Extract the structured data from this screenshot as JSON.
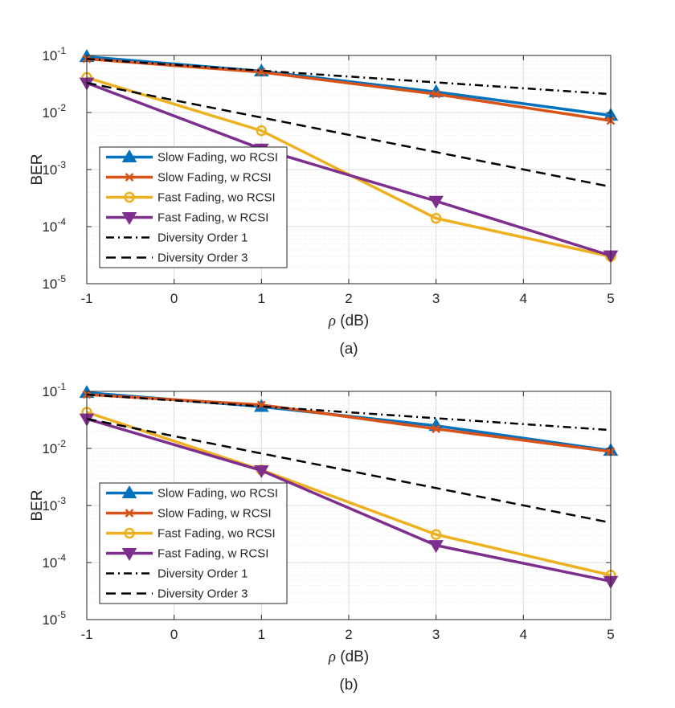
{
  "chart_data": [
    {
      "type": "line",
      "caption": "(a)",
      "xlabel_symbol": "ρ",
      "xlabel_unit": " (dB)",
      "ylabel": "BER",
      "y_scale": "log",
      "xlim": [
        -1,
        5
      ],
      "ylim": [
        1e-05,
        0.1
      ],
      "xticks": [
        "-1",
        "0",
        "1",
        "2",
        "3",
        "4",
        "5"
      ],
      "yticks": [
        {
          "base": "10",
          "exp": "-5"
        },
        {
          "base": "10",
          "exp": "-4"
        },
        {
          "base": "10",
          "exp": "-3"
        },
        {
          "base": "10",
          "exp": "-2"
        },
        {
          "base": "10",
          "exp": "-1"
        }
      ],
      "grid": true,
      "legend_position": "lower-left",
      "series": [
        {
          "name": "Slow Fading, wo RCSI",
          "color": "#0072BD",
          "marker": "triangle-up",
          "line": "solid",
          "x": [
            -1,
            1,
            3,
            5
          ],
          "y": [
            0.095,
            0.053,
            0.023,
            0.0089
          ]
        },
        {
          "name": "Slow Fading, w RCSI",
          "color": "#D95319",
          "marker": "x",
          "line": "solid",
          "x": [
            -1,
            1,
            3,
            5
          ],
          "y": [
            0.087,
            0.051,
            0.021,
            0.0072
          ]
        },
        {
          "name": "Fast Fading, wo RCSI",
          "color": "#EDB120",
          "marker": "circle",
          "line": "solid",
          "x": [
            -1,
            1,
            3,
            5
          ],
          "y": [
            0.041,
            0.0048,
            0.00014,
            3e-05
          ]
        },
        {
          "name": "Fast Fading, w RCSI",
          "color": "#7E2F8E",
          "marker": "triangle-down",
          "line": "solid",
          "x": [
            -1,
            1,
            3,
            5
          ],
          "y": [
            0.033,
            0.0023,
            0.00028,
            3.1e-05
          ]
        },
        {
          "name": "Diversity Order 1",
          "color": "#000000",
          "marker": "none",
          "line": "dashdot",
          "x": [
            -1,
            5
          ],
          "y": [
            0.087,
            0.021
          ]
        },
        {
          "name": "Diversity Order 3",
          "color": "#000000",
          "marker": "none",
          "line": "dashed",
          "x": [
            -1,
            5
          ],
          "y": [
            0.033,
            0.0005
          ]
        }
      ]
    },
    {
      "type": "line",
      "caption": "(b)",
      "xlabel_symbol": "ρ",
      "xlabel_unit": " (dB)",
      "ylabel": "BER",
      "y_scale": "log",
      "xlim": [
        -1,
        5
      ],
      "ylim": [
        1e-05,
        0.1
      ],
      "xticks": [
        "-1",
        "0",
        "1",
        "2",
        "3",
        "4",
        "5"
      ],
      "yticks": [
        {
          "base": "10",
          "exp": "-5"
        },
        {
          "base": "10",
          "exp": "-4"
        },
        {
          "base": "10",
          "exp": "-3"
        },
        {
          "base": "10",
          "exp": "-2"
        },
        {
          "base": "10",
          "exp": "-1"
        }
      ],
      "grid": true,
      "legend_position": "lower-left",
      "series": [
        {
          "name": "Slow Fading, wo RCSI",
          "color": "#0072BD",
          "marker": "triangle-up",
          "line": "solid",
          "x": [
            -1,
            1,
            3,
            5
          ],
          "y": [
            0.095,
            0.054,
            0.025,
            0.0092
          ]
        },
        {
          "name": "Slow Fading, w RCSI",
          "color": "#D95319",
          "marker": "x",
          "line": "solid",
          "x": [
            -1,
            1,
            3,
            5
          ],
          "y": [
            0.088,
            0.058,
            0.022,
            0.0088
          ]
        },
        {
          "name": "Fast Fading, wo RCSI",
          "color": "#EDB120",
          "marker": "circle",
          "line": "solid",
          "x": [
            -1,
            1,
            3,
            5
          ],
          "y": [
            0.043,
            0.0042,
            0.00031,
            6e-05
          ]
        },
        {
          "name": "Fast Fading, w RCSI",
          "color": "#7E2F8E",
          "marker": "triangle-down",
          "line": "solid",
          "x": [
            -1,
            1,
            3,
            5
          ],
          "y": [
            0.033,
            0.0041,
            0.0002,
            4.7e-05
          ]
        },
        {
          "name": "Diversity Order 1",
          "color": "#000000",
          "marker": "none",
          "line": "dashdot",
          "x": [
            -1,
            5
          ],
          "y": [
            0.088,
            0.021
          ]
        },
        {
          "name": "Diversity Order 3",
          "color": "#000000",
          "marker": "none",
          "line": "dashed",
          "x": [
            -1,
            5
          ],
          "y": [
            0.033,
            0.0005
          ]
        }
      ]
    }
  ]
}
